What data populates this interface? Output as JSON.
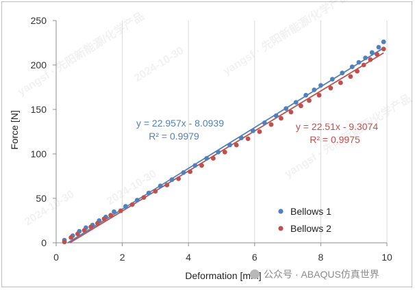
{
  "chart_data": {
    "type": "scatter",
    "xlabel": "Deformation [mm]",
    "ylabel": "Force [N]",
    "xlim": [
      0,
      10
    ],
    "ylim": [
      0,
      250
    ],
    "xticks": [
      "0",
      "2",
      "4",
      "6",
      "8",
      "10"
    ],
    "yticks": [
      "0",
      "50",
      "100",
      "150",
      "200",
      "250"
    ],
    "grid": "vertical-gridlines-only",
    "legend_position": "bottom-right",
    "series": [
      {
        "name": "Bellows 1",
        "color": "#4F81BD",
        "trendline": {
          "slope": 22.957,
          "intercept": -8.0939,
          "equation": "y = 22.957x - 8.0939",
          "r2": "R² = 0.9979",
          "x_range": [
            0.35,
            9.9
          ]
        },
        "points": [
          [
            0.25,
            3
          ],
          [
            0.5,
            8
          ],
          [
            0.7,
            13
          ],
          [
            0.9,
            17
          ],
          [
            1.1,
            20
          ],
          [
            1.3,
            25
          ],
          [
            1.5,
            29
          ],
          [
            1.75,
            35
          ],
          [
            2.1,
            41
          ],
          [
            2.45,
            48
          ],
          [
            2.8,
            56
          ],
          [
            3.15,
            64
          ],
          [
            3.5,
            71
          ],
          [
            3.85,
            79
          ],
          [
            4.2,
            87
          ],
          [
            4.55,
            95
          ],
          [
            4.9,
            102
          ],
          [
            5.25,
            110
          ],
          [
            5.6,
            118
          ],
          [
            5.95,
            126
          ],
          [
            6.3,
            135
          ],
          [
            6.65,
            143
          ],
          [
            6.95,
            151
          ],
          [
            7.25,
            158
          ],
          [
            7.55,
            166
          ],
          [
            7.8,
            172
          ],
          [
            8.0,
            177
          ],
          [
            8.35,
            184
          ],
          [
            8.65,
            191
          ],
          [
            8.95,
            198
          ],
          [
            9.15,
            203
          ],
          [
            9.35,
            208
          ],
          [
            9.55,
            214
          ],
          [
            9.75,
            220
          ],
          [
            9.9,
            226
          ]
        ]
      },
      {
        "name": "Bellows 2",
        "color": "#C0504D",
        "trendline": {
          "slope": 22.51,
          "intercept": -9.3074,
          "equation": "y = 22.51x - 9.3074",
          "r2": "R² = 0.9975",
          "x_range": [
            0.42,
            9.9
          ]
        },
        "points": [
          [
            0.25,
            1
          ],
          [
            0.45,
            6
          ],
          [
            0.65,
            10
          ],
          [
            0.85,
            14
          ],
          [
            1.05,
            18
          ],
          [
            1.25,
            22
          ],
          [
            1.45,
            27
          ],
          [
            1.65,
            31
          ],
          [
            1.95,
            36
          ],
          [
            2.3,
            43
          ],
          [
            2.65,
            51
          ],
          [
            3.0,
            58
          ],
          [
            3.35,
            65
          ],
          [
            3.7,
            72
          ],
          [
            4.05,
            80
          ],
          [
            4.4,
            87
          ],
          [
            4.75,
            95
          ],
          [
            5.1,
            102
          ],
          [
            5.45,
            110
          ],
          [
            5.8,
            117
          ],
          [
            6.15,
            125
          ],
          [
            6.5,
            133
          ],
          [
            6.8,
            140
          ],
          [
            7.1,
            147
          ],
          [
            7.4,
            154
          ],
          [
            7.65,
            160
          ],
          [
            7.95,
            166
          ],
          [
            8.3,
            174
          ],
          [
            8.6,
            180
          ],
          [
            8.9,
            187
          ],
          [
            9.1,
            193
          ],
          [
            9.3,
            200
          ],
          [
            9.5,
            206
          ],
          [
            9.7,
            212
          ],
          [
            9.9,
            218
          ]
        ]
      }
    ]
  },
  "watermarks": [
    "yangsf · 先阳新能源/化学产品",
    "2024-10-30"
  ],
  "footer_watermark": "公众号 · ABAQUS仿真世界"
}
